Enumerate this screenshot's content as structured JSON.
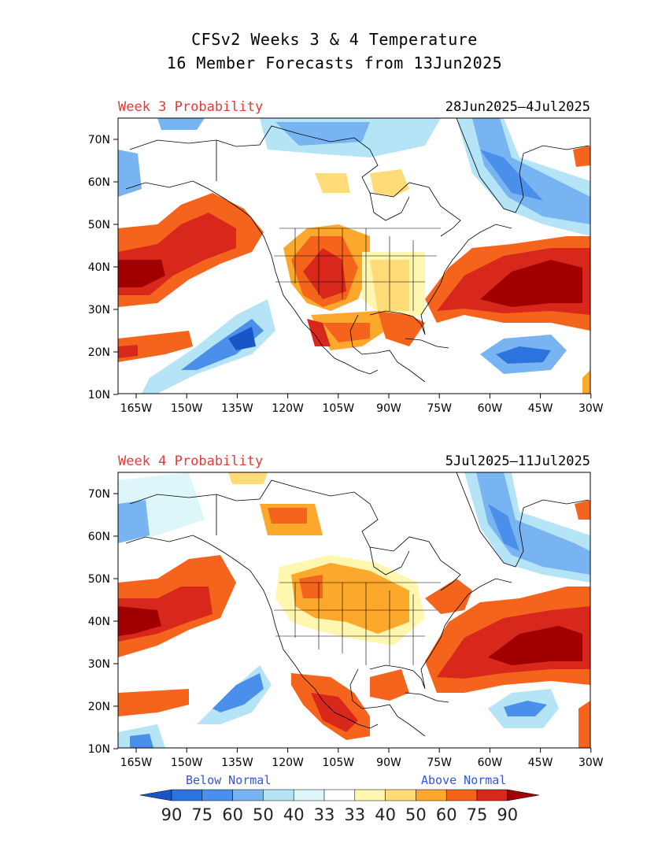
{
  "title_line1": "CFSv2 Weeks 3 & 4 Temperature",
  "title_line2": "16 Member Forecasts from 13Jun2025",
  "panels": [
    {
      "label": "Week 3 Probability",
      "dates": "28Jun2025–4Jul2025"
    },
    {
      "label": "Week 4 Probability",
      "dates": "5Jul2025–11Jul2025"
    }
  ],
  "axes": {
    "lat_ticks": [
      "70N",
      "60N",
      "50N",
      "40N",
      "30N",
      "20N",
      "10N"
    ],
    "lon_ticks": [
      "165W",
      "150W",
      "135W",
      "120W",
      "105W",
      "90W",
      "75W",
      "60W",
      "45W",
      "30W"
    ]
  },
  "colorbar": {
    "below_label": "Below Normal",
    "above_label": "Above Normal",
    "values": [
      "90",
      "75",
      "60",
      "50",
      "40",
      "33",
      "33",
      "40",
      "50",
      "60",
      "75",
      "90"
    ],
    "colors": [
      "#1a55c8",
      "#2c74dd",
      "#4a90ea",
      "#78b4f2",
      "#b4e4f6",
      "#dcf6fa",
      "#ffffff",
      "#fff6b0",
      "#ffdc78",
      "#fca82c",
      "#f4641c",
      "#d8281c",
      "#a00000"
    ]
  }
}
